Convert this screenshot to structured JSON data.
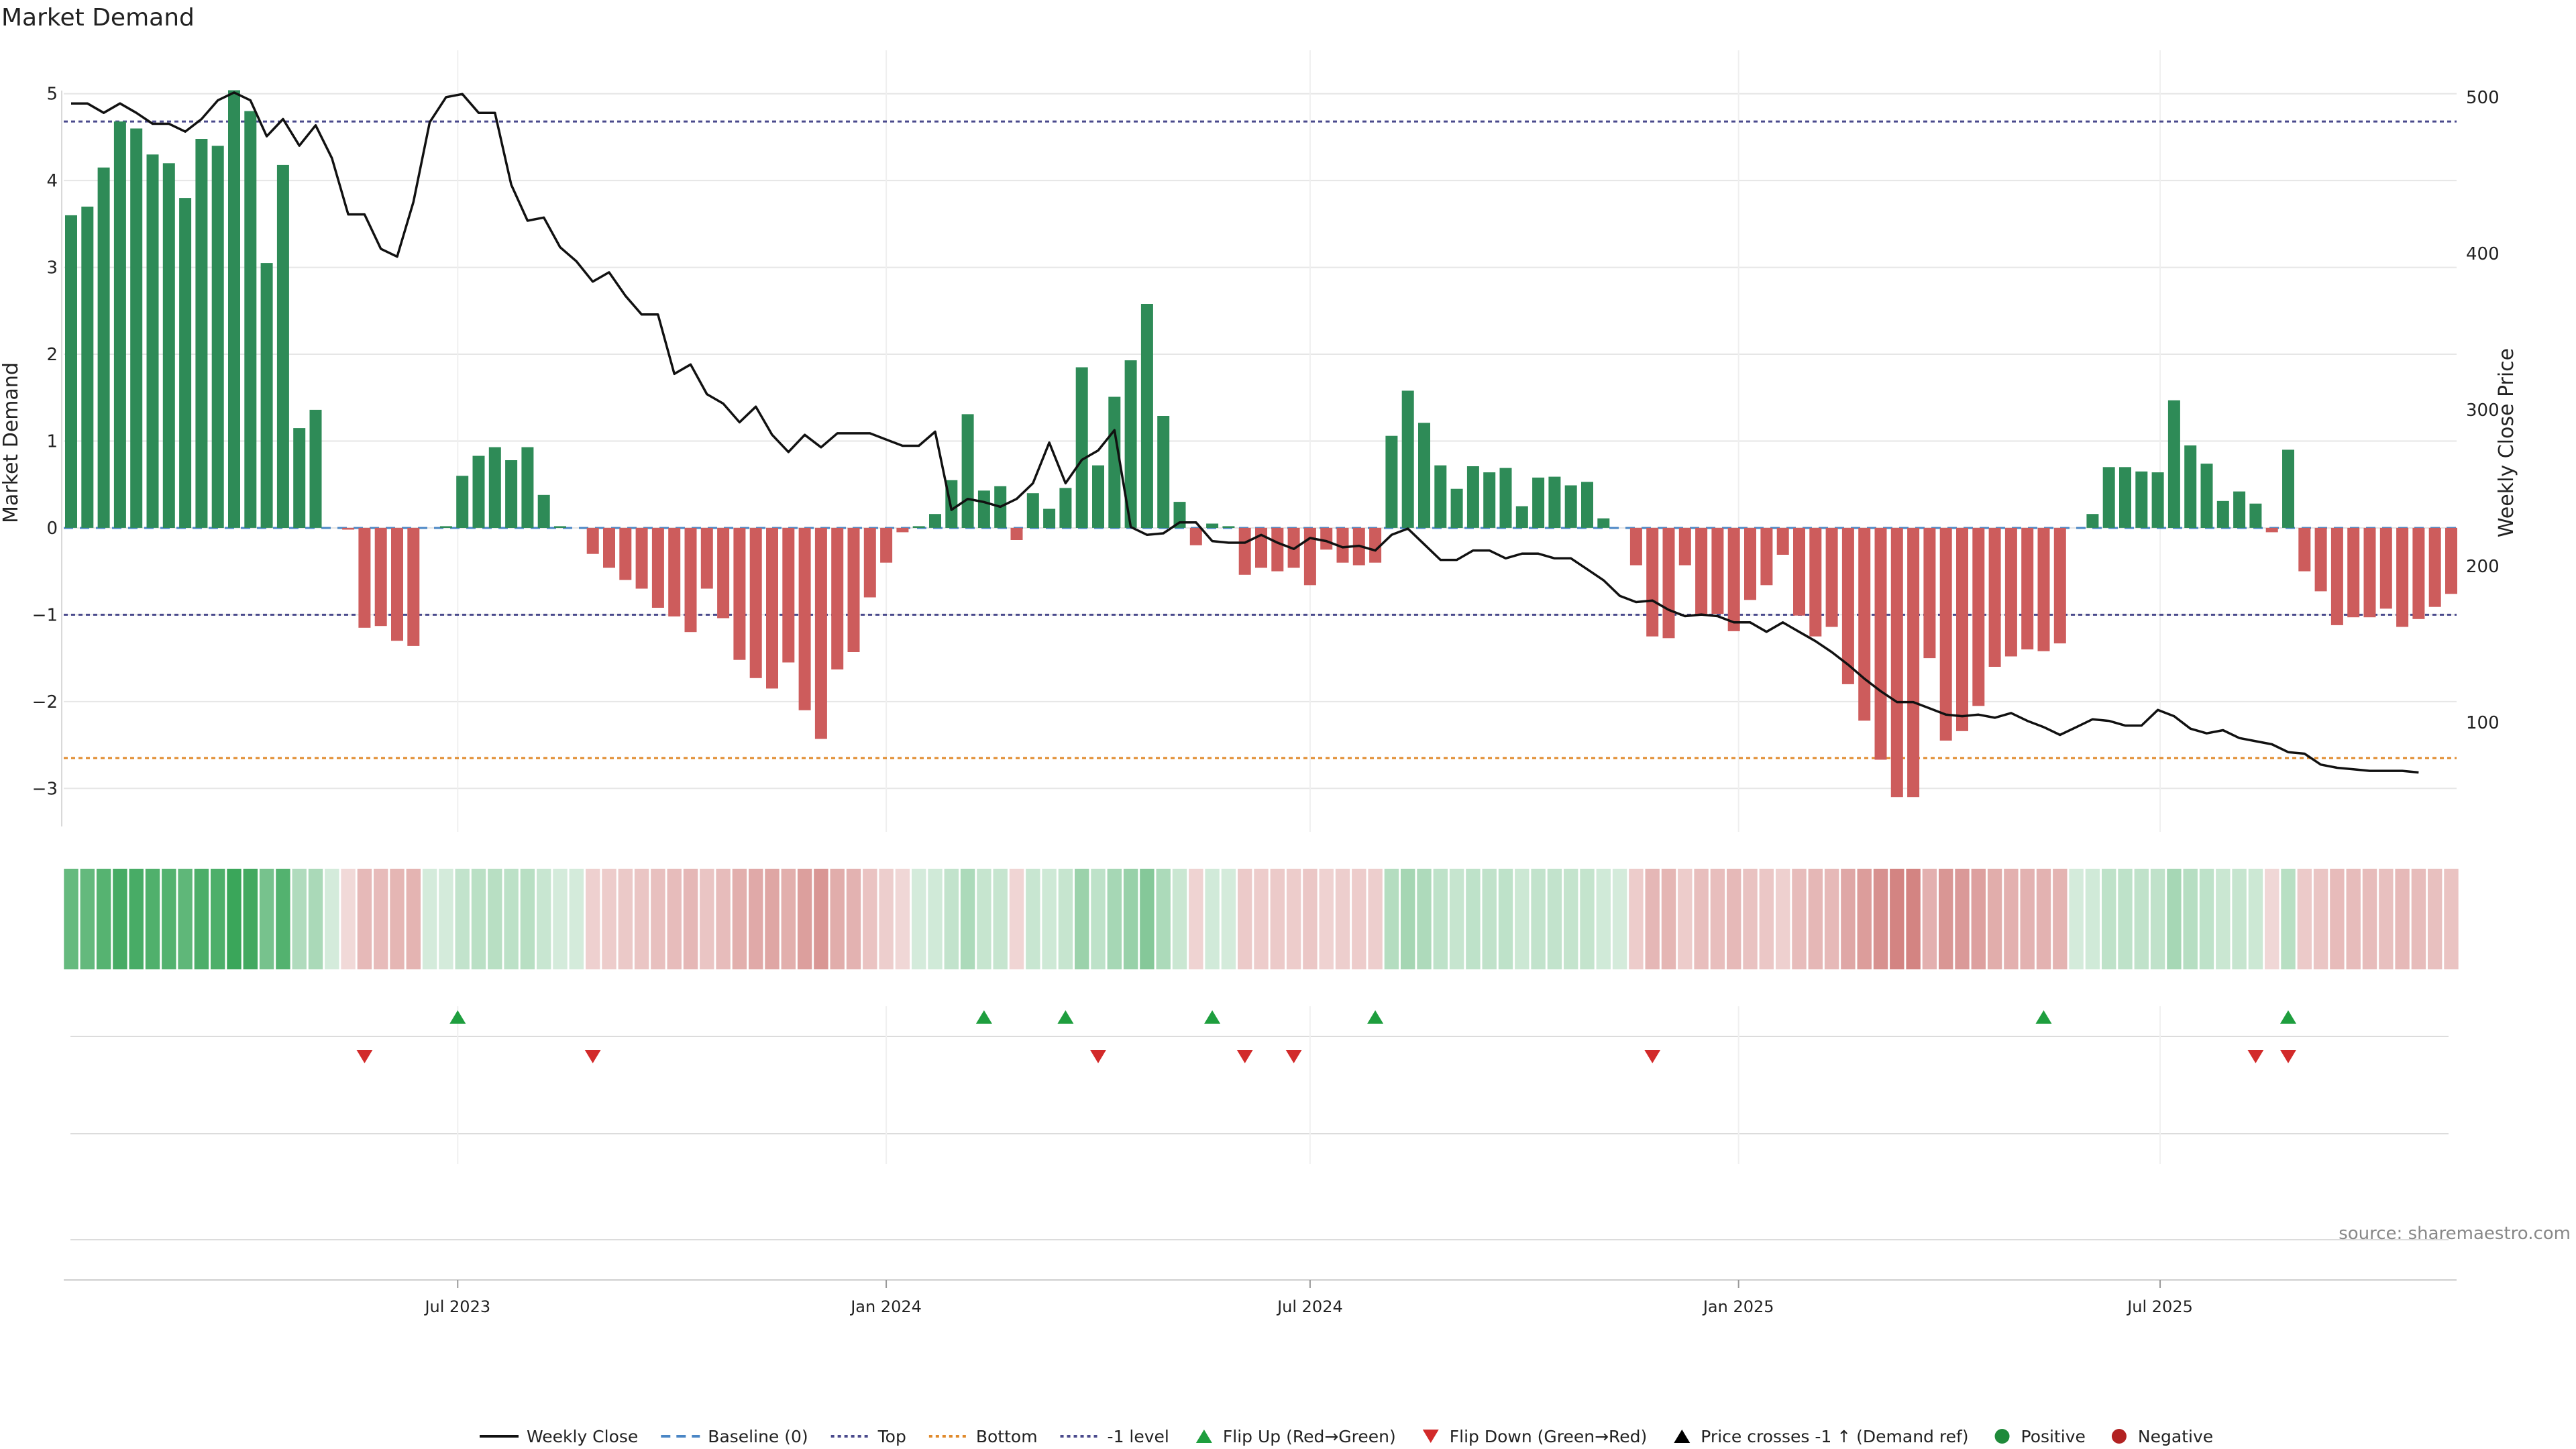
{
  "chart_data": {
    "type": "bar",
    "title": "Market Demand",
    "ylabel": "Market Demand",
    "y2label": "Weekly Close Price",
    "ylim": [
      -3.5,
      5.5
    ],
    "y2lim": [
      30,
      530
    ],
    "yticks": [
      5,
      4,
      3,
      2,
      1,
      0,
      -1,
      -2,
      -3
    ],
    "y2ticks": [
      500,
      400,
      300,
      200,
      100
    ],
    "x_dates": {
      "start": "2023-01-16",
      "interval_days": 7
    },
    "x_ticks": [
      {
        "date": "2023-07-01",
        "label": "Jul 2023"
      },
      {
        "date": "2024-01-01",
        "label": "Jan 2024"
      },
      {
        "date": "2024-07-01",
        "label": "Jul 2024"
      },
      {
        "date": "2025-01-01",
        "label": "Jan 2025"
      },
      {
        "date": "2025-07-01",
        "label": "Jul 2025"
      }
    ],
    "reference_lines": {
      "top": 4.68,
      "minus_one": -1.0,
      "bottom": -2.65
    },
    "demand": [
      3.6,
      3.7,
      4.15,
      4.68,
      4.6,
      4.3,
      4.2,
      3.8,
      4.48,
      4.4,
      5.04,
      4.8,
      3.05,
      4.18,
      1.15,
      1.36,
      0,
      -0.02,
      -1.15,
      -1.13,
      -1.3,
      -1.36,
      0,
      0.02,
      0.6,
      0.83,
      0.93,
      0.78,
      0.93,
      0.38,
      0.02,
      0,
      -0.3,
      -0.46,
      -0.6,
      -0.7,
      -0.92,
      -1.02,
      -1.2,
      -0.7,
      -1.04,
      -1.52,
      -1.73,
      -1.85,
      -1.55,
      -2.1,
      -2.43,
      -1.63,
      -1.43,
      -0.8,
      -0.4,
      -0.05,
      0.02,
      0.16,
      0.55,
      1.31,
      0.43,
      0.48,
      -0.14,
      0.4,
      0.22,
      0.46,
      1.85,
      0.72,
      1.51,
      1.93,
      2.58,
      1.29,
      0.3,
      -0.2,
      0.05,
      0.02,
      -0.54,
      -0.46,
      -0.5,
      -0.46,
      -0.66,
      -0.25,
      -0.4,
      -0.43,
      -0.4,
      1.06,
      1.58,
      1.21,
      0.72,
      0.45,
      0.71,
      0.64,
      0.69,
      0.25,
      0.58,
      0.59,
      0.49,
      0.53,
      0.11,
      0,
      -0.43,
      -1.25,
      -1.27,
      -0.43,
      -0.99,
      -0.99,
      -1.19,
      -0.83,
      -0.66,
      -0.31,
      -1.01,
      -1.25,
      -1.14,
      -1.8,
      -2.22,
      -2.67,
      -3.1,
      -3.1,
      -1.5,
      -2.45,
      -2.34,
      -2.05,
      -1.6,
      -1.48,
      -1.4,
      -1.42,
      -1.33,
      0,
      0.16,
      0.7,
      0.7,
      0.65,
      0.64,
      1.47,
      0.95,
      0.74,
      0.31,
      0.42,
      0.28,
      -0.05,
      0.9,
      -0.5,
      -0.73,
      -1.12,
      -1.03,
      -1.03,
      -0.93,
      -1.14,
      -1.05,
      -0.91,
      -0.76
    ],
    "weekly_close": [
      496,
      496,
      490,
      496,
      490,
      483,
      483,
      478,
      486,
      498,
      503,
      498,
      475,
      486,
      469,
      482,
      461,
      425,
      425,
      403,
      398,
      433,
      484,
      500,
      502,
      490,
      490,
      444,
      421,
      423,
      404,
      395,
      382,
      388,
      373,
      361,
      361,
      323,
      329,
      310,
      304,
      292,
      302,
      284,
      273,
      284,
      276,
      285,
      285,
      285,
      281,
      277,
      277,
      286,
      236,
      243,
      241,
      238,
      243,
      253,
      279,
      253,
      268,
      274,
      287,
      225,
      220,
      221,
      228,
      228,
      216,
      215,
      215,
      220,
      215,
      211,
      218,
      216,
      212,
      213,
      210,
      220,
      224,
      214,
      204,
      204,
      210,
      210,
      205,
      208,
      208,
      205,
      205,
      198,
      191,
      181,
      177,
      178,
      172,
      168,
      169,
      168,
      164,
      164,
      158,
      164,
      158,
      152,
      145,
      137,
      128,
      120,
      113,
      113,
      109,
      105,
      104,
      105,
      103,
      106,
      101,
      97,
      92,
      97,
      102,
      101,
      98,
      98,
      108,
      104,
      96,
      93,
      95,
      90,
      88,
      86,
      81,
      80,
      73,
      71,
      70,
      69,
      69,
      69,
      68
    ],
    "flip_up_dates": [
      "2023-07-01",
      "2024-02-12",
      "2024-03-18",
      "2024-05-20",
      "2024-07-29",
      "2025-05-12",
      "2025-08-25"
    ],
    "flip_down_dates": [
      "2023-05-22",
      "2023-08-28",
      "2024-04-01",
      "2024-06-03",
      "2024-06-24",
      "2024-11-25",
      "2025-08-11",
      "2025-08-25"
    ],
    "source_note": "source: sharemaestro.com",
    "legend": [
      {
        "label": "Weekly Close",
        "kind": "line",
        "color": "#111111"
      },
      {
        "label": "Baseline (0)",
        "kind": "dash",
        "color": "#4a86c5"
      },
      {
        "label": "Top",
        "kind": "dot",
        "color": "#4a4a8c"
      },
      {
        "label": "Bottom",
        "kind": "dot",
        "color": "#e08a2c"
      },
      {
        "label": "-1 level",
        "kind": "dot",
        "color": "#4a4a8c"
      },
      {
        "label": "Flip Up (Red→Green)",
        "kind": "tri-up",
        "color": "#1e9e3e"
      },
      {
        "label": "Flip Down (Green→Red)",
        "kind": "tri-down",
        "color": "#d22a2a"
      },
      {
        "label": "Price crosses -1 ↑ (Demand ref)",
        "kind": "tri-up",
        "color": "#000000"
      },
      {
        "label": "Positive",
        "kind": "circle",
        "color": "#1f8a3a"
      },
      {
        "label": "Negative",
        "kind": "circle",
        "color": "#b22222"
      }
    ],
    "colors": {
      "positive": "#2e8b57",
      "negative": "#cd5c5c",
      "heat_positive": "#3aa65a",
      "heat_negative": "#c0504d",
      "close_line": "#111111",
      "grid": "#e6e6e6"
    }
  }
}
